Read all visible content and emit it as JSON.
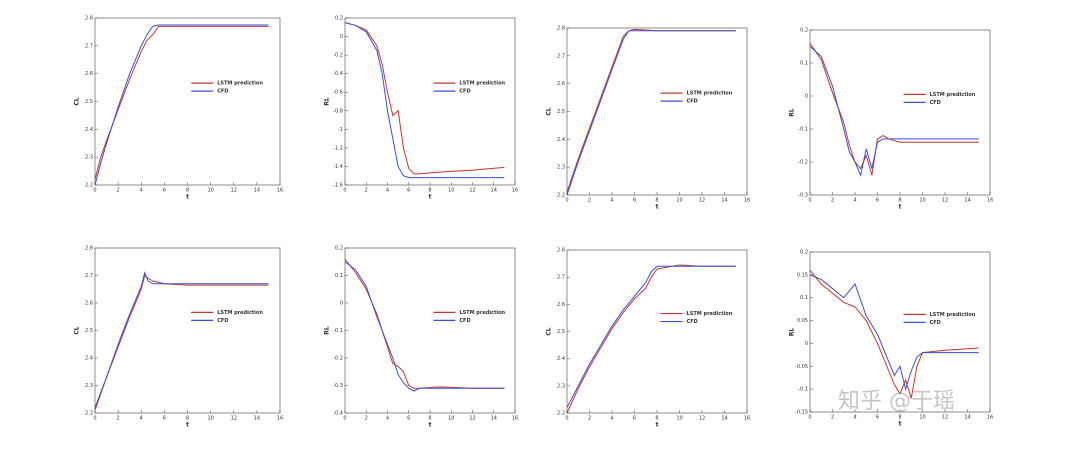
{
  "chart_data": [
    {
      "type": "line",
      "xlabel": "t",
      "ylabel": "CL",
      "xlim": [
        0,
        16
      ],
      "xticks": [
        0,
        2,
        4,
        6,
        8,
        10,
        12,
        14,
        16
      ],
      "ylim": [
        2.2,
        2.8
      ],
      "yticks": [
        2.2,
        2.3,
        2.4,
        2.5,
        2.6,
        2.7,
        2.8
      ],
      "x": [
        0,
        0.5,
        1,
        2,
        3,
        4,
        4.5,
        5,
        5.5,
        6,
        8,
        10,
        12,
        15
      ],
      "series": [
        {
          "name": "LSTM prediction",
          "color": "#c0392b",
          "values": [
            2.22,
            2.3,
            2.36,
            2.47,
            2.58,
            2.68,
            2.72,
            2.74,
            2.77,
            2.77,
            2.77,
            2.77,
            2.77,
            2.77
          ]
        },
        {
          "name": "CFD",
          "color": "#3b4fd8",
          "values": [
            2.2,
            2.28,
            2.35,
            2.48,
            2.6,
            2.7,
            2.74,
            2.77,
            2.775,
            2.775,
            2.775,
            2.775,
            2.775,
            2.775
          ]
        }
      ]
    },
    {
      "type": "line",
      "xlabel": "t",
      "ylabel": "RL",
      "xlim": [
        0,
        16
      ],
      "xticks": [
        0,
        2,
        4,
        6,
        8,
        10,
        12,
        14,
        16
      ],
      "ylim": [
        -1.6,
        0.2
      ],
      "yticks": [
        -1.6,
        -1.4,
        -1.2,
        -1,
        -0.8,
        -0.6,
        -0.4,
        -0.2,
        0,
        0.2
      ],
      "x": [
        0,
        1,
        2,
        3,
        3.5,
        4,
        4.5,
        5,
        5.5,
        6,
        6.5,
        7,
        9,
        12,
        15
      ],
      "series": [
        {
          "name": "LSTM prediction",
          "color": "#c0392b",
          "values": [
            0.15,
            0.12,
            0.07,
            -0.1,
            -0.3,
            -0.6,
            -0.85,
            -0.8,
            -1.2,
            -1.42,
            -1.48,
            -1.48,
            -1.46,
            -1.44,
            -1.41
          ]
        },
        {
          "name": "CFD",
          "color": "#3b4fd8",
          "values": [
            0.15,
            0.12,
            0.05,
            -0.15,
            -0.4,
            -0.8,
            -1.1,
            -1.4,
            -1.5,
            -1.52,
            -1.52,
            -1.52,
            -1.52,
            -1.52,
            -1.52
          ]
        }
      ]
    },
    {
      "type": "line",
      "xlabel": "t",
      "ylabel": "CL",
      "xlim": [
        0,
        16
      ],
      "xticks": [
        0,
        2,
        4,
        6,
        8,
        10,
        12,
        14,
        16
      ],
      "ylim": [
        2.2,
        2.8
      ],
      "yticks": [
        2.2,
        2.3,
        2.4,
        2.5,
        2.6,
        2.7,
        2.8
      ],
      "x": [
        0,
        1,
        2,
        3,
        4,
        5,
        5.5,
        6,
        8,
        10,
        12,
        15
      ],
      "series": [
        {
          "name": "LSTM prediction",
          "color": "#c0392b",
          "values": [
            2.21,
            2.33,
            2.44,
            2.55,
            2.66,
            2.77,
            2.79,
            2.795,
            2.79,
            2.79,
            2.79,
            2.79
          ]
        },
        {
          "name": "CFD",
          "color": "#3b4fd8",
          "values": [
            2.2,
            2.32,
            2.43,
            2.54,
            2.65,
            2.76,
            2.79,
            2.79,
            2.79,
            2.79,
            2.79,
            2.79
          ]
        }
      ]
    },
    {
      "type": "line",
      "xlabel": "t",
      "ylabel": "RL",
      "xlim": [
        0,
        16
      ],
      "xticks": [
        0,
        2,
        4,
        6,
        8,
        10,
        12,
        14,
        16
      ],
      "ylim": [
        -0.3,
        0.2
      ],
      "yticks": [
        -0.3,
        -0.2,
        -0.1,
        0,
        0.1,
        0.2
      ],
      "x": [
        0,
        1,
        2,
        3,
        3.5,
        4,
        4.5,
        5,
        5.5,
        6,
        6.5,
        7,
        8,
        10,
        15
      ],
      "series": [
        {
          "name": "LSTM prediction",
          "color": "#c0392b",
          "values": [
            0.16,
            0.11,
            0.01,
            -0.08,
            -0.15,
            -0.2,
            -0.22,
            -0.18,
            -0.24,
            -0.13,
            -0.12,
            -0.13,
            -0.14,
            -0.14,
            -0.14
          ]
        },
        {
          "name": "CFD",
          "color": "#3b4fd8",
          "values": [
            0.15,
            0.12,
            0.03,
            -0.1,
            -0.17,
            -0.2,
            -0.24,
            -0.16,
            -0.22,
            -0.14,
            -0.13,
            -0.13,
            -0.13,
            -0.13,
            -0.13
          ]
        }
      ]
    },
    {
      "type": "line",
      "xlabel": "t",
      "ylabel": "CL",
      "xlim": [
        0,
        16
      ],
      "xticks": [
        0,
        2,
        4,
        6,
        8,
        10,
        12,
        14,
        16
      ],
      "ylim": [
        2.2,
        2.8
      ],
      "yticks": [
        2.2,
        2.3,
        2.4,
        2.5,
        2.6,
        2.7,
        2.8
      ],
      "x": [
        0,
        1,
        2,
        3,
        4,
        4.3,
        4.6,
        5,
        6,
        8,
        10,
        15
      ],
      "series": [
        {
          "name": "LSTM prediction",
          "color": "#c0392b",
          "values": [
            2.21,
            2.33,
            2.44,
            2.55,
            2.65,
            2.7,
            2.69,
            2.68,
            2.67,
            2.665,
            2.665,
            2.665
          ]
        },
        {
          "name": "CFD",
          "color": "#3b4fd8",
          "values": [
            2.22,
            2.33,
            2.45,
            2.56,
            2.66,
            2.71,
            2.68,
            2.67,
            2.67,
            2.67,
            2.67,
            2.67
          ]
        }
      ]
    },
    {
      "type": "line",
      "xlabel": "t",
      "ylabel": "RL",
      "xlim": [
        0,
        16
      ],
      "xticks": [
        0,
        2,
        4,
        6,
        8,
        10,
        12,
        14,
        16
      ],
      "ylim": [
        -0.4,
        0.2
      ],
      "yticks": [
        -0.4,
        -0.3,
        -0.2,
        -0.1,
        0,
        0.1,
        0.2
      ],
      "x": [
        0,
        1,
        2,
        3,
        3.5,
        4,
        4.5,
        5,
        5.5,
        6,
        6.5,
        7,
        9,
        12,
        15
      ],
      "series": [
        {
          "name": "LSTM prediction",
          "color": "#c0392b",
          "values": [
            0.16,
            0.11,
            0.05,
            -0.04,
            -0.1,
            -0.16,
            -0.22,
            -0.23,
            -0.25,
            -0.3,
            -0.31,
            -0.31,
            -0.305,
            -0.31,
            -0.31
          ]
        },
        {
          "name": "CFD",
          "color": "#3b4fd8",
          "values": [
            0.15,
            0.12,
            0.06,
            -0.05,
            -0.1,
            -0.15,
            -0.2,
            -0.26,
            -0.29,
            -0.31,
            -0.32,
            -0.31,
            -0.31,
            -0.31,
            -0.31
          ]
        }
      ]
    },
    {
      "type": "line",
      "xlabel": "t",
      "ylabel": "CL",
      "xlim": [
        0,
        16
      ],
      "xticks": [
        0,
        2,
        4,
        6,
        8,
        10,
        12,
        14,
        16
      ],
      "ylim": [
        2.2,
        2.8
      ],
      "yticks": [
        2.2,
        2.3,
        2.4,
        2.5,
        2.6,
        2.7,
        2.8
      ],
      "x": [
        0,
        1,
        2,
        3,
        4,
        5,
        6,
        7,
        7.5,
        8,
        10,
        12,
        15
      ],
      "series": [
        {
          "name": "LSTM prediction",
          "color": "#c0392b",
          "values": [
            2.2,
            2.29,
            2.37,
            2.44,
            2.51,
            2.57,
            2.62,
            2.66,
            2.7,
            2.73,
            2.745,
            2.74,
            2.74
          ]
        },
        {
          "name": "CFD",
          "color": "#3b4fd8",
          "values": [
            2.22,
            2.3,
            2.38,
            2.45,
            2.52,
            2.58,
            2.63,
            2.68,
            2.72,
            2.74,
            2.74,
            2.74,
            2.74
          ]
        }
      ]
    },
    {
      "type": "line",
      "xlabel": "t",
      "ylabel": "RL",
      "xlim": [
        0,
        16
      ],
      "xticks": [
        0,
        2,
        4,
        6,
        8,
        10,
        12,
        14,
        16
      ],
      "ylim": [
        -0.15,
        0.2
      ],
      "yticks": [
        -0.15,
        -0.1,
        -0.05,
        0,
        0.05,
        0.1,
        0.15,
        0.2
      ],
      "x": [
        0,
        1,
        2,
        3,
        4,
        5,
        6,
        7,
        7.5,
        8,
        8.5,
        9,
        9.5,
        10,
        12,
        15
      ],
      "series": [
        {
          "name": "LSTM prediction",
          "color": "#c0392b",
          "values": [
            0.16,
            0.13,
            0.11,
            0.09,
            0.08,
            0.05,
            0,
            -0.06,
            -0.09,
            -0.11,
            -0.08,
            -0.12,
            -0.05,
            -0.02,
            -0.015,
            -0.01
          ]
        },
        {
          "name": "CFD",
          "color": "#3b4fd8",
          "values": [
            0.15,
            0.14,
            0.12,
            0.1,
            0.13,
            0.06,
            0.02,
            -0.04,
            -0.07,
            -0.05,
            -0.1,
            -0.06,
            -0.03,
            -0.02,
            -0.02,
            -0.02
          ]
        }
      ]
    }
  ],
  "watermark": "知乎 @于瑶"
}
